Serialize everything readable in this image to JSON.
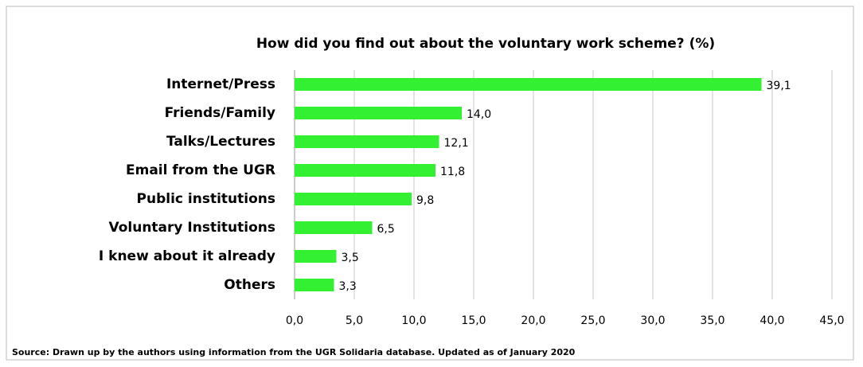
{
  "chart_data": {
    "type": "bar",
    "orientation": "horizontal",
    "title": "How did you find out about the voluntary work scheme? (%)",
    "categories": [
      "Internet/Press",
      "Friends/Family",
      "Talks/Lectures",
      "Email from the UGR",
      "Public institutions",
      "Voluntary Institutions",
      "I knew about it already",
      "Others"
    ],
    "values": [
      39.1,
      14.0,
      12.1,
      11.8,
      9.8,
      6.5,
      3.5,
      3.3
    ],
    "value_labels": [
      "39,1",
      "14,0",
      "12,1",
      "11,8",
      "9,8",
      "6,5",
      "3,5",
      "3,3"
    ],
    "color": "#33f033",
    "xlim": [
      0,
      45
    ],
    "xticks": [
      {
        "value": 0,
        "label": "0,0"
      },
      {
        "value": 5,
        "label": "5,0"
      },
      {
        "value": 10,
        "label": "10,0"
      },
      {
        "value": 15,
        "label": "15,0"
      },
      {
        "value": 20,
        "label": "20,0"
      },
      {
        "value": 25,
        "label": "25,0"
      },
      {
        "value": 30,
        "label": "30,0"
      },
      {
        "value": 35,
        "label": "35,0"
      },
      {
        "value": 40,
        "label": "40,0"
      },
      {
        "value": 45,
        "label": "45,0"
      }
    ],
    "grid": true,
    "source": "Source: Drawn up by the authors using information from the UGR Solidaria database. Updated as of January 2020"
  }
}
